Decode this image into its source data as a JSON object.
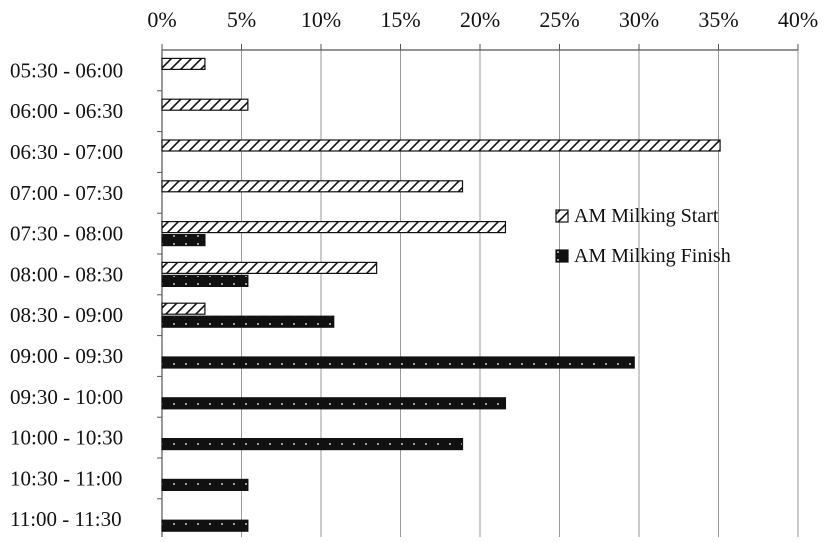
{
  "chart_data": {
    "type": "bar",
    "orientation": "horizontal",
    "title": "",
    "xlabel": "",
    "ylabel": "",
    "x_ticks": [
      "0%",
      "5%",
      "10%",
      "15%",
      "20%",
      "25%",
      "30%",
      "35%",
      "40%"
    ],
    "xlim": [
      0,
      40
    ],
    "x_axis_position": "top",
    "grid": true,
    "legend_position": "right",
    "categories": [
      "05:30 - 06:00",
      "06:00 - 06:30",
      "06:30 - 07:00",
      "07:00 - 07:30",
      "07:30 - 08:00",
      "08:00 - 08:30",
      "08:30 - 09:00",
      "09:00 - 09:30",
      "09:30 - 10:00",
      "10:00 - 10:30",
      "10:30 - 11:00",
      "11:00 - 11:30"
    ],
    "series": [
      {
        "name": "AM Milking Start",
        "pattern": "hatched",
        "color": "#ffffff",
        "values": [
          2.7,
          5.4,
          35.1,
          18.9,
          21.6,
          13.5,
          2.7,
          0,
          0,
          0,
          0,
          0
        ]
      },
      {
        "name": "AM Milking Finish",
        "pattern": "dotted-solid",
        "color": "#111111",
        "values": [
          0,
          0,
          0,
          0,
          2.7,
          5.4,
          10.8,
          29.7,
          21.6,
          18.9,
          5.4,
          5.4
        ]
      }
    ]
  }
}
